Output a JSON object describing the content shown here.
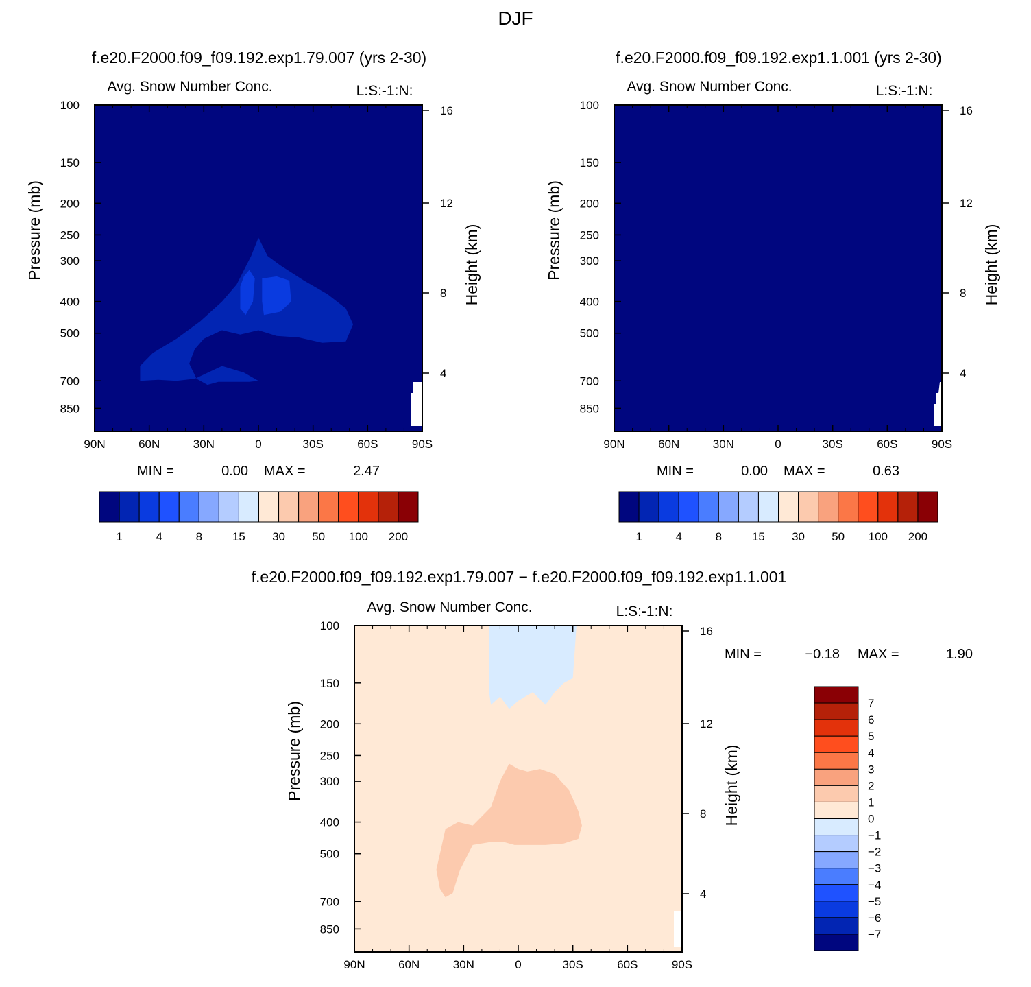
{
  "chart_data": {
    "type": "contour",
    "season": "DJF",
    "variable": "Avg. Snow Number Conc.",
    "variable_tag": "L:S:-1:N:",
    "x_ticks": [
      "90N",
      "60N",
      "30N",
      "0",
      "30S",
      "60S",
      "90S"
    ],
    "x_range": [
      90,
      -90
    ],
    "y_label": "Pressure (mb)",
    "y_ticks": [
      100,
      150,
      200,
      250,
      300,
      400,
      500,
      700,
      850
    ],
    "y_range": [
      100,
      1000
    ],
    "y2_label": "Height (km)",
    "y2_ticks": [
      16,
      12,
      8,
      4
    ],
    "min_label": "MIN =",
    "max_label": "MAX =",
    "panels": [
      {
        "title": "f.e20.F2000.f09_f09.192.exp1.79.007 (yrs 2-30)",
        "min": "0.00",
        "max": "2.47",
        "colorbar_labels": [
          "1",
          "4",
          "8",
          "15",
          "30",
          "50",
          "100",
          "200"
        ],
        "colorbar_colors": [
          "#00067f",
          "#0225b3",
          "#0a3be0",
          "#1f52ff",
          "#4a7dff",
          "#86a8ff",
          "#b4ccff",
          "#d8ebff",
          "#ffe9d6",
          "#fccaae",
          "#f9a27e",
          "#fb7747",
          "#ff4e1e",
          "#e3320b",
          "#b52109",
          "#8a0005"
        ]
      },
      {
        "title": "f.e20.F2000.f09_f09.192.exp1.1.001 (yrs 2-30)",
        "min": "0.00",
        "max": "0.63",
        "colorbar_labels": [
          "1",
          "4",
          "8",
          "15",
          "30",
          "50",
          "100",
          "200"
        ],
        "colorbar_colors": [
          "#00067f",
          "#0225b3",
          "#0a3be0",
          "#1f52ff",
          "#4a7dff",
          "#86a8ff",
          "#b4ccff",
          "#d8ebff",
          "#ffe9d6",
          "#fccaae",
          "#f9a27e",
          "#fb7747",
          "#ff4e1e",
          "#e3320b",
          "#b52109",
          "#8a0005"
        ]
      },
      {
        "title": "f.e20.F2000.f09_f09.192.exp1.79.007 − f.e20.F2000.f09_f09.192.exp1.1.001",
        "min": "−0.18",
        "max": "1.90",
        "colorbar_labels": [
          "7",
          "6",
          "5",
          "4",
          "3",
          "2",
          "1",
          "0",
          "−1",
          "−2",
          "−3",
          "−4",
          "−5",
          "−6",
          "−7"
        ],
        "colorbar_colors": [
          "#8a0005",
          "#b52109",
          "#e3320b",
          "#ff4e1e",
          "#fb7747",
          "#f9a27e",
          "#fccaae",
          "#ffe9d6",
          "#d8ebff",
          "#b4ccff",
          "#86a8ff",
          "#4a7dff",
          "#1f52ff",
          "#0a3be0",
          "#0225b3",
          "#00067f"
        ]
      }
    ]
  }
}
